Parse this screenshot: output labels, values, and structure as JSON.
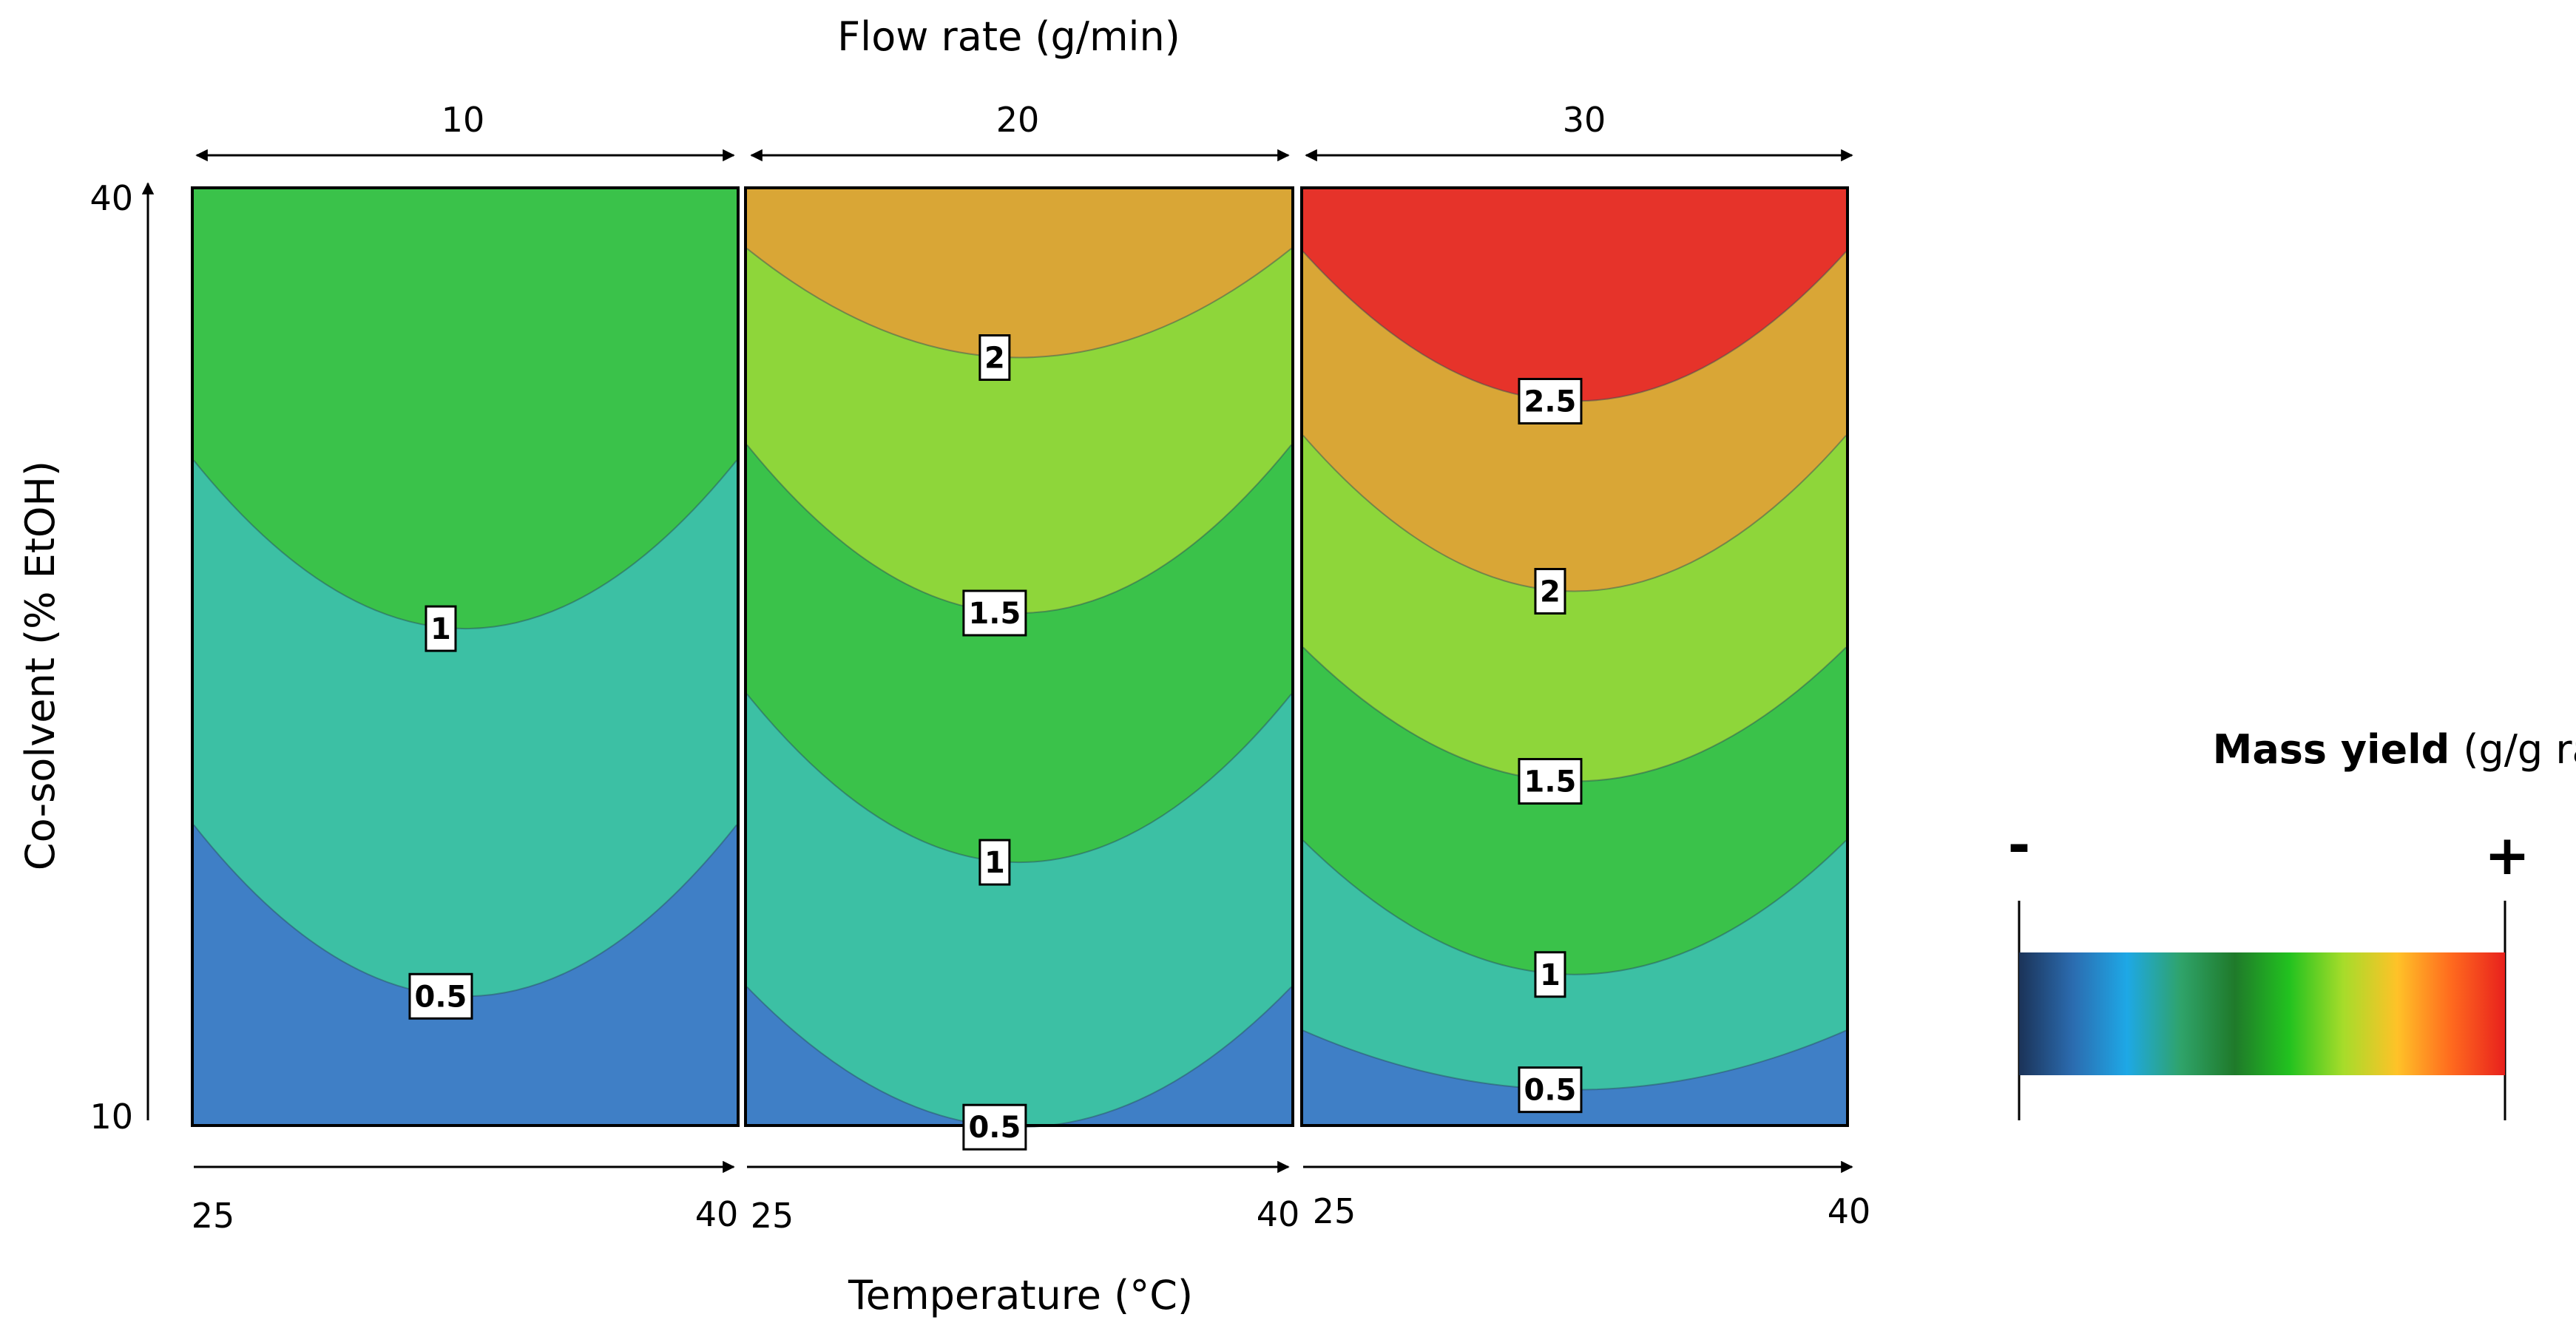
{
  "chart_data": {
    "type": "contour",
    "title": "Flow rate (g/min)",
    "xlabel": "Temperature (°C)",
    "ylabel": "Co-solvent (% EtOH)",
    "x_range": [
      25,
      40
    ],
    "y_range": [
      10,
      40
    ],
    "y_tick_labels": [
      "40",
      "10"
    ],
    "panels": [
      {
        "flow_rate": "10",
        "x_tick_labels": [
          "25",
          "40"
        ],
        "levels": [
          {
            "value": 0.5,
            "label": "0.5",
            "y_edge": 19.6,
            "y_center": 14.1
          },
          {
            "value": 1.0,
            "label": "1",
            "y_edge": 31.3,
            "y_center": 25.9
          }
        ],
        "bands": [
          {
            "range": "< 0.5",
            "color": "#3f7fc6"
          },
          {
            "range": "0.5–1",
            "color": "#3cc0a4"
          },
          {
            "range": "1–1.5",
            "color": "#3ac24a"
          }
        ]
      },
      {
        "flow_rate": "20",
        "x_tick_labels": [
          "25",
          "40"
        ],
        "levels": [
          {
            "value": 0.5,
            "label": "0.5",
            "y_edge": 14.4,
            "y_center": 9.9
          },
          {
            "value": 1.0,
            "label": "1",
            "y_edge": 23.8,
            "y_center": 18.4
          },
          {
            "value": 1.5,
            "label": "1.5",
            "y_edge": 31.8,
            "y_center": 26.4
          },
          {
            "value": 2.0,
            "label": "2",
            "y_edge": 38.1,
            "y_center": 34.6
          }
        ],
        "bands": [
          {
            "range": "< 0.5",
            "color": "#3f7fc6"
          },
          {
            "range": "0.5–1",
            "color": "#3cc0a4"
          },
          {
            "range": "1–1.5",
            "color": "#3ac24a"
          },
          {
            "range": "1.5–2",
            "color": "#8ed63a"
          },
          {
            "range": "2–2.5",
            "color": "#d9a636"
          }
        ]
      },
      {
        "flow_rate": "30",
        "x_tick_labels": [
          "25",
          "40"
        ],
        "levels": [
          {
            "value": 0.5,
            "label": "0.5",
            "y_edge": 13.0,
            "y_center": 11.1
          },
          {
            "value": 1.0,
            "label": "1",
            "y_edge": 19.1,
            "y_center": 14.8
          },
          {
            "value": 1.5,
            "label": "1.5",
            "y_edge": 25.3,
            "y_center": 21.0
          },
          {
            "value": 2.0,
            "label": "2",
            "y_edge": 32.1,
            "y_center": 27.1
          },
          {
            "value": 2.5,
            "label": "2.5",
            "y_edge": 38.0,
            "y_center": 33.2
          }
        ],
        "bands": [
          {
            "range": "< 0.5",
            "color": "#3f7fc6"
          },
          {
            "range": "0.5–1",
            "color": "#3cc0a4"
          },
          {
            "range": "1–1.5",
            "color": "#3ac24a"
          },
          {
            "range": "1.5–2",
            "color": "#8ed63a"
          },
          {
            "range": "2–2.5",
            "color": "#d9a636"
          },
          {
            "range": "> 2.5",
            "color": "#e6332a"
          }
        ]
      }
    ],
    "legend": {
      "title_bold": "Mass yield",
      "title_rest": "(g/g raw material)",
      "min_label": "-",
      "max_label": "+",
      "gradient_colors": [
        "#1b3358",
        "#2b6cb0",
        "#1ea8e6",
        "#2fa36a",
        "#1f7a2a",
        "#22c21f",
        "#a6dc2a",
        "#ffc228",
        "#ff6a1e",
        "#e8211d"
      ]
    }
  }
}
